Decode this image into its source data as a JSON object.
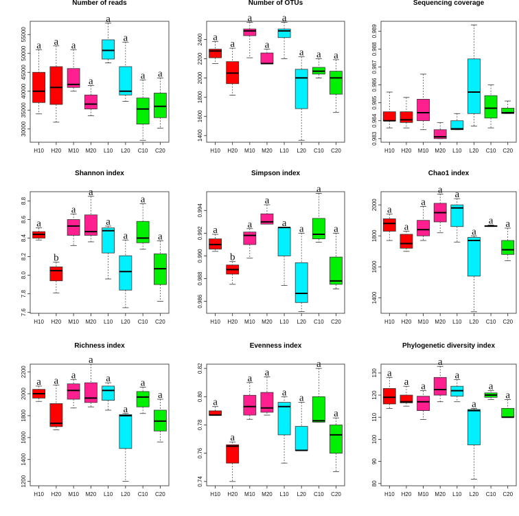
{
  "colors": {
    "H": "#ff0000",
    "M": "#ff1f8e",
    "L": "#00f0ff",
    "C": "#00f000"
  },
  "chart_data": [
    {
      "type": "boxplot",
      "title": "Number of reads",
      "categories": [
        "H10",
        "H20",
        "M10",
        "M20",
        "L10",
        "L20",
        "C10",
        "C20"
      ],
      "ylim": [
        26500,
        58500
      ],
      "ticks": [
        30000,
        35000,
        40000,
        45000,
        50000,
        55000
      ],
      "tick_labels": [
        "30000",
        "35000",
        "40000",
        "45000",
        "50000",
        "55000"
      ],
      "boxes": [
        {
          "low": 34000,
          "q1": 37000,
          "median": 40000,
          "q3": 45000,
          "high": 51000
        },
        {
          "low": 31800,
          "q1": 36500,
          "median": 41000,
          "q3": 46500,
          "high": 52000
        },
        {
          "low": 40000,
          "q1": 41000,
          "median": 41800,
          "q3": 46000,
          "high": 51000
        },
        {
          "low": 33500,
          "q1": 35300,
          "median": 36600,
          "q3": 39000,
          "high": 41500
        },
        {
          "low": 47500,
          "q1": 48500,
          "median": 50800,
          "q3": 53600,
          "high": 58000
        },
        {
          "low": 37300,
          "q1": 39000,
          "median": 40000,
          "q3": 46500,
          "high": 53000
        },
        {
          "low": 27000,
          "q1": 31300,
          "median": 35300,
          "q3": 38200,
          "high": 43000
        },
        {
          "low": 30200,
          "q1": 33000,
          "median": 36000,
          "q3": 39500,
          "high": 43500
        }
      ],
      "letters": [
        "a",
        "a",
        "a",
        "a",
        "a",
        "a",
        "a",
        "a"
      ]
    },
    {
      "type": "boxplot",
      "title": "Number of OTUs",
      "categories": [
        "H10",
        "H20",
        "M10",
        "M20",
        "L10",
        "L20",
        "C10",
        "C20"
      ],
      "ylim": [
        1330,
        2590
      ],
      "ticks": [
        1400,
        1600,
        1800,
        2000,
        2200,
        2400
      ],
      "tick_labels": [
        "1400",
        "1600",
        "1800",
        "2000",
        "2200",
        "2400"
      ],
      "boxes": [
        {
          "low": 2150,
          "q1": 2210,
          "median": 2280,
          "q3": 2300,
          "high": 2380
        },
        {
          "low": 1820,
          "q1": 1940,
          "median": 2050,
          "q3": 2170,
          "high": 2310
        },
        {
          "low": 2210,
          "q1": 2440,
          "median": 2490,
          "q3": 2510,
          "high": 2580
        },
        {
          "low": 2150,
          "q1": 2150,
          "median": 2150,
          "q3": 2260,
          "high": 2300
        },
        {
          "low": 2200,
          "q1": 2420,
          "median": 2490,
          "q3": 2510,
          "high": 2580
        },
        {
          "low": 1350,
          "q1": 1680,
          "median": 2000,
          "q3": 2090,
          "high": 2220
        },
        {
          "low": 2000,
          "q1": 2040,
          "median": 2070,
          "q3": 2110,
          "high": 2200
        },
        {
          "low": 1640,
          "q1": 1830,
          "median": 2000,
          "q3": 2070,
          "high": 2190
        }
      ],
      "letters": [
        "a",
        "a",
        "a",
        "a",
        "a",
        "a",
        "a",
        "a"
      ]
    },
    {
      "type": "boxplot",
      "title": "Sequencing coverage",
      "categories": [
        "H10",
        "H20",
        "M10",
        "M20",
        "L10",
        "L20",
        "C10",
        "C20"
      ],
      "ylim": [
        0.9828,
        0.98955
      ],
      "ticks": [
        0.983,
        0.984,
        0.985,
        0.986,
        0.987,
        0.988,
        0.989
      ],
      "tick_labels": [
        "0.983",
        "0.984",
        "0.985",
        "0.986",
        "0.987",
        "0.988",
        "0.989"
      ],
      "boxes": [
        {
          "low": 0.9836,
          "q1": 0.984,
          "median": 0.984,
          "q3": 0.9845,
          "high": 0.9856
        },
        {
          "low": 0.9836,
          "q1": 0.9839,
          "median": 0.98405,
          "q3": 0.9845,
          "high": 0.9853
        },
        {
          "low": 0.9835,
          "q1": 0.984,
          "median": 0.98445,
          "q3": 0.9852,
          "high": 0.9866
        },
        {
          "low": 0.983,
          "q1": 0.983,
          "median": 0.9831,
          "q3": 0.9835,
          "high": 0.9839
        },
        {
          "low": 0.9835,
          "q1": 0.9835,
          "median": 0.98355,
          "q3": 0.984,
          "high": 0.9844
        },
        {
          "low": 0.9837,
          "q1": 0.9844,
          "median": 0.9856,
          "q3": 0.98745,
          "high": 0.98935
        },
        {
          "low": 0.9836,
          "q1": 0.98415,
          "median": 0.9847,
          "q3": 0.9854,
          "high": 0.986
        },
        {
          "low": 0.9844,
          "q1": 0.9844,
          "median": 0.98445,
          "q3": 0.9847,
          "high": 0.9851
        }
      ],
      "letters": []
    },
    {
      "type": "boxplot",
      "title": "Shannon index",
      "categories": [
        "H10",
        "H20",
        "M10",
        "M20",
        "L10",
        "L20",
        "C10",
        "C20"
      ],
      "ylim": [
        7.59,
        8.9
      ],
      "ticks": [
        7.6,
        7.8,
        8.0,
        8.2,
        8.4,
        8.6,
        8.8
      ],
      "tick_labels": [
        "7.6",
        "7.8",
        "8.0",
        "8.2",
        "8.4",
        "8.6",
        "8.8"
      ],
      "boxes": [
        {
          "low": 8.38,
          "q1": 8.4,
          "median": 8.44,
          "q3": 8.47,
          "high": 8.51
        },
        {
          "low": 7.81,
          "q1": 7.94,
          "median": 8.05,
          "q3": 8.09,
          "high": 8.14
        },
        {
          "low": 8.32,
          "q1": 8.43,
          "median": 8.53,
          "q3": 8.6,
          "high": 8.66
        },
        {
          "low": 8.36,
          "q1": 8.43,
          "median": 8.47,
          "q3": 8.65,
          "high": 8.85
        },
        {
          "low": 7.96,
          "q1": 8.24,
          "median": 8.48,
          "q3": 8.51,
          "high": 8.53
        },
        {
          "low": 7.65,
          "q1": 7.84,
          "median": 8.04,
          "q3": 8.21,
          "high": 8.38
        },
        {
          "low": 8.28,
          "q1": 8.35,
          "median": 8.4,
          "q3": 8.58,
          "high": 8.77
        },
        {
          "low": 7.72,
          "q1": 7.9,
          "median": 8.07,
          "q3": 8.23,
          "high": 8.37
        }
      ],
      "letters": [
        "a",
        "b",
        "a",
        "a",
        "a",
        "a",
        "a",
        "a"
      ]
    },
    {
      "type": "boxplot",
      "title": "Simpson index",
      "categories": [
        "H10",
        "H20",
        "M10",
        "M20",
        "L10",
        "L20",
        "C10",
        "C20"
      ],
      "ylim": [
        0.98495,
        0.99565
      ],
      "ticks": [
        0.986,
        0.988,
        0.99,
        0.992,
        0.994
      ],
      "tick_labels": [
        "0.986",
        "0.988",
        "0.990",
        "0.992",
        "0.994"
      ],
      "boxes": [
        {
          "low": 0.9904,
          "q1": 0.9906,
          "median": 0.991,
          "q3": 0.9915,
          "high": 0.9919
        },
        {
          "low": 0.9875,
          "q1": 0.9884,
          "median": 0.9888,
          "q3": 0.9892,
          "high": 0.9895
        },
        {
          "low": 0.9898,
          "q1": 0.991,
          "median": 0.9918,
          "q3": 0.9921,
          "high": 0.9924
        },
        {
          "low": 0.9928,
          "q1": 0.9928,
          "median": 0.993,
          "q3": 0.9937,
          "high": 0.9945
        },
        {
          "low": 0.9874,
          "q1": 0.99,
          "median": 0.9925,
          "q3": 0.9925,
          "high": 0.9925
        },
        {
          "low": 0.9851,
          "q1": 0.9859,
          "median": 0.9867,
          "q3": 0.9894,
          "high": 0.992
        },
        {
          "low": 0.9912,
          "q1": 0.9915,
          "median": 0.9919,
          "q3": 0.9933,
          "high": 0.9955
        },
        {
          "low": 0.9871,
          "q1": 0.9875,
          "median": 0.9878,
          "q3": 0.9899,
          "high": 0.992
        }
      ],
      "letters": [
        "a",
        "b",
        "a",
        "a",
        "a",
        "a",
        "a",
        "a"
      ]
    },
    {
      "type": "boxplot",
      "title": "Chao1 index",
      "categories": [
        "H10",
        "H20",
        "M10",
        "M20",
        "L10",
        "L20",
        "C10",
        "C20"
      ],
      "ylim": [
        1300,
        2085
      ],
      "ticks": [
        1400,
        1600,
        1800,
        2000
      ],
      "tick_labels": [
        "1400",
        "1600",
        "1800",
        "2000"
      ],
      "boxes": [
        {
          "low": 1770,
          "q1": 1830,
          "median": 1880,
          "q3": 1910,
          "high": 1940
        },
        {
          "low": 1700,
          "q1": 1720,
          "median": 1750,
          "q3": 1810,
          "high": 1830
        },
        {
          "low": 1770,
          "q1": 1800,
          "median": 1840,
          "q3": 1900,
          "high": 1990
        },
        {
          "low": 1820,
          "q1": 1890,
          "median": 1950,
          "q3": 2010,
          "high": 2070
        },
        {
          "low": 1760,
          "q1": 1860,
          "median": 1980,
          "q3": 2000,
          "high": 2040
        },
        {
          "low": 1310,
          "q1": 1540,
          "median": 1770,
          "q3": 1790,
          "high": 1800
        },
        {
          "low": 1860,
          "q1": 1860,
          "median": 1863,
          "q3": 1866,
          "high": 1870
        },
        {
          "low": 1640,
          "q1": 1680,
          "median": 1710,
          "q3": 1770,
          "high": 1850
        }
      ],
      "letters": [
        "a",
        "a",
        "a",
        "a",
        "a",
        "a",
        "a",
        "a"
      ]
    },
    {
      "type": "boxplot",
      "title": "Richness index",
      "categories": [
        "H10",
        "H20",
        "M10",
        "M20",
        "L10",
        "L20",
        "C10",
        "C20"
      ],
      "ylim": [
        1160,
        2270
      ],
      "ticks": [
        1200,
        1400,
        1600,
        1800,
        2000,
        2200
      ],
      "tick_labels": [
        "1200",
        "1400",
        "1600",
        "1800",
        "2000",
        "2200"
      ],
      "boxes": [
        {
          "low": 1930,
          "q1": 1960,
          "median": 2000,
          "q3": 2040,
          "high": 2070
        },
        {
          "low": 1670,
          "q1": 1700,
          "median": 1730,
          "q3": 1910,
          "high": 2080
        },
        {
          "low": 1870,
          "q1": 1950,
          "median": 2030,
          "q3": 2090,
          "high": 2130
        },
        {
          "low": 1880,
          "q1": 1920,
          "median": 1960,
          "q3": 2100,
          "high": 2270
        },
        {
          "low": 1850,
          "q1": 1940,
          "median": 2030,
          "q3": 2070,
          "high": 2100
        },
        {
          "low": 1200,
          "q1": 1500,
          "median": 1800,
          "q3": 1810,
          "high": 1820
        },
        {
          "low": 1820,
          "q1": 1880,
          "median": 1970,
          "q3": 2020,
          "high": 2060
        },
        {
          "low": 1560,
          "q1": 1660,
          "median": 1750,
          "q3": 1850,
          "high": 1950
        }
      ],
      "letters": [
        "a",
        "a",
        "a",
        "a",
        "a",
        "a",
        "a",
        "a"
      ]
    },
    {
      "type": "boxplot",
      "title": "Evenness index",
      "categories": [
        "H10",
        "H20",
        "M10",
        "M20",
        "L10",
        "L20",
        "C10",
        "C20"
      ],
      "ylim": [
        0.737,
        0.823
      ],
      "ticks": [
        0.74,
        0.76,
        0.78,
        0.8,
        0.82
      ],
      "tick_labels": [
        "0.74",
        "0.76",
        "0.78",
        "0.80",
        "0.82"
      ],
      "boxes": [
        {
          "low": 0.787,
          "q1": 0.787,
          "median": 0.787,
          "q3": 0.79,
          "high": 0.793
        },
        {
          "low": 0.74,
          "q1": 0.753,
          "median": 0.765,
          "q3": 0.766,
          "high": 0.768
        },
        {
          "low": 0.784,
          "q1": 0.787,
          "median": 0.793,
          "q3": 0.801,
          "high": 0.81
        },
        {
          "low": 0.787,
          "q1": 0.789,
          "median": 0.792,
          "q3": 0.803,
          "high": 0.814
        },
        {
          "low": 0.753,
          "q1": 0.773,
          "median": 0.793,
          "q3": 0.796,
          "high": 0.8
        },
        {
          "low": 0.762,
          "q1": 0.762,
          "median": 0.762,
          "q3": 0.779,
          "high": 0.796
        },
        {
          "low": 0.782,
          "q1": 0.782,
          "median": 0.783,
          "q3": 0.8,
          "high": 0.82
        },
        {
          "low": 0.747,
          "q1": 0.76,
          "median": 0.773,
          "q3": 0.78,
          "high": 0.785
        }
      ],
      "letters": [
        "a",
        "a",
        "a",
        "a",
        "a",
        "a",
        "a",
        "a"
      ]
    },
    {
      "type": "boxplot",
      "title": "Phylogenetic diversity index",
      "categories": [
        "H10",
        "H20",
        "M10",
        "M20",
        "L10",
        "L20",
        "C10",
        "C20"
      ],
      "ylim": [
        79,
        134
      ],
      "ticks": [
        80,
        90,
        100,
        110,
        120,
        130
      ],
      "tick_labels": [
        "80",
        "90",
        "100",
        "110",
        "120",
        "130"
      ],
      "boxes": [
        {
          "low": 114,
          "q1": 116,
          "median": 119,
          "q3": 123,
          "high": 128
        },
        {
          "low": 115,
          "q1": 116.5,
          "median": 117,
          "q3": 120,
          "high": 124
        },
        {
          "low": 109,
          "q1": 113,
          "median": 117,
          "q3": 119.5,
          "high": 122
        },
        {
          "low": 117,
          "q1": 120,
          "median": 122.5,
          "q3": 128,
          "high": 133
        },
        {
          "low": 117,
          "q1": 119.5,
          "median": 122,
          "q3": 124,
          "high": 127
        },
        {
          "low": 82,
          "q1": 97.5,
          "median": 113,
          "q3": 113.5,
          "high": 114
        },
        {
          "low": 118,
          "q1": 119,
          "median": 120,
          "q3": 121,
          "high": 122
        },
        {
          "low": 110,
          "q1": 110,
          "median": 110,
          "q3": 114,
          "high": 118
        }
      ],
      "letters": [
        "a",
        "a",
        "a",
        "a",
        "a",
        "a",
        "a",
        "a"
      ]
    }
  ]
}
